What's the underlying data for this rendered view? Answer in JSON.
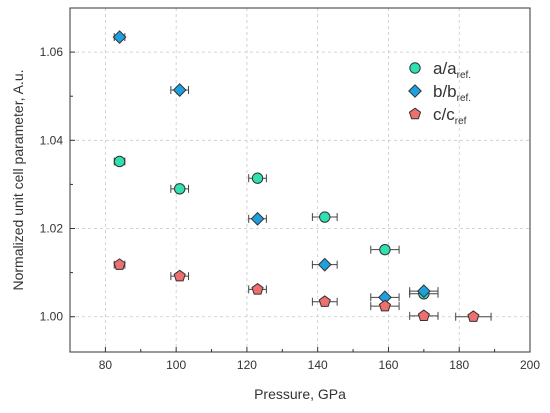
{
  "chart_data": {
    "type": "scatter",
    "title": "",
    "xlabel": "Pressure, GPa",
    "ylabel": "Normalized unit cell parameter, A.u.",
    "xlim": [
      70,
      200
    ],
    "ylim": [
      0.992,
      1.07
    ],
    "x_ticks": [
      80,
      100,
      120,
      140,
      160,
      180,
      200
    ],
    "y_ticks": [
      1.0,
      1.02,
      1.04,
      1.06
    ],
    "y_tick_labels": [
      "1.00",
      "1.02",
      "1.04",
      "1.06"
    ],
    "grid": true,
    "legend_position": "top-right",
    "series": [
      {
        "name": "a/a",
        "name_sub": "ref.",
        "marker": "circle",
        "color": "#2fe0b0",
        "points": [
          {
            "x": 84,
            "y": 1.0352,
            "xerr": 1.5
          },
          {
            "x": 101,
            "y": 1.029,
            "xerr": 2.5
          },
          {
            "x": 123,
            "y": 1.0314,
            "xerr": 2.5
          },
          {
            "x": 142,
            "y": 1.0226,
            "xerr": 3.5
          },
          {
            "x": 159,
            "y": 1.0152,
            "xerr": 4
          },
          {
            "x": 170,
            "y": 1.0052,
            "xerr": 4
          }
        ]
      },
      {
        "name": "b/b",
        "name_sub": "ref.",
        "marker": "diamond",
        "color": "#1e9fe0",
        "points": [
          {
            "x": 84,
            "y": 1.0634,
            "xerr": 1.5
          },
          {
            "x": 101,
            "y": 1.0514,
            "xerr": 2.5
          },
          {
            "x": 123,
            "y": 1.0222,
            "xerr": 2.5
          },
          {
            "x": 142,
            "y": 1.0118,
            "xerr": 3.5
          },
          {
            "x": 159,
            "y": 1.0044,
            "xerr": 4
          },
          {
            "x": 170,
            "y": 1.0058,
            "xerr": 4
          }
        ]
      },
      {
        "name": "c/c",
        "name_sub": "ref",
        "marker": "pentagon",
        "color": "#ee6f6f",
        "points": [
          {
            "x": 84,
            "y": 1.0118,
            "xerr": 1.5
          },
          {
            "x": 101,
            "y": 1.0092,
            "xerr": 2.5
          },
          {
            "x": 123,
            "y": 1.0062,
            "xerr": 2.5
          },
          {
            "x": 142,
            "y": 1.0034,
            "xerr": 3.5
          },
          {
            "x": 159,
            "y": 1.0024,
            "xerr": 4
          },
          {
            "x": 170,
            "y": 1.0002,
            "xerr": 4
          },
          {
            "x": 184,
            "y": 1.0,
            "xerr": 5
          }
        ]
      }
    ]
  }
}
